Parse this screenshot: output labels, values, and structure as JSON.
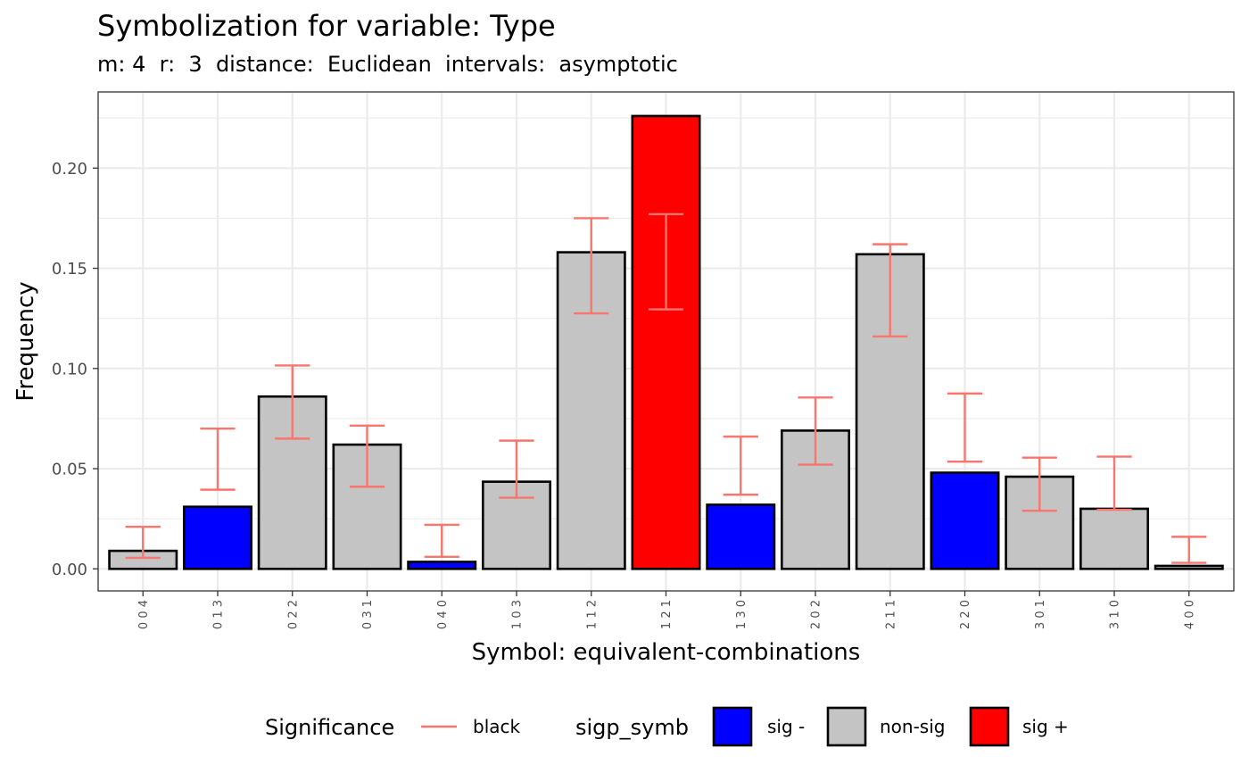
{
  "title": "Symbolization for variable: Type",
  "subtitle": "m: 4  r:  3  distance:  Euclidean  intervals:  asymptotic",
  "chart_data": {
    "type": "bar",
    "xlabel": "Symbol: equivalent-combinations",
    "ylabel": "Frequency",
    "ylim": [
      -0.011,
      0.238
    ],
    "yticks": [
      0.0,
      0.05,
      0.1,
      0.15,
      0.2
    ],
    "ytick_labels": [
      "0.00",
      "0.05",
      "0.10",
      "0.15",
      "0.20"
    ],
    "grid": true,
    "legend_position": "bottom",
    "categories": [
      "0 0 4",
      "0 1 3",
      "0 2 2",
      "0 3 1",
      "0 4 0",
      "1 0 3",
      "1 1 2",
      "1 2 1",
      "1 3 0",
      "2 0 2",
      "2 1 1",
      "2 2 0",
      "3 0 1",
      "3 1 0",
      "4 0 0"
    ],
    "values": [
      0.009,
      0.031,
      0.086,
      0.062,
      0.0035,
      0.0435,
      0.158,
      0.226,
      0.032,
      0.069,
      0.157,
      0.048,
      0.046,
      0.03,
      0.0015
    ],
    "significance": [
      "non-sig",
      "sig -",
      "non-sig",
      "non-sig",
      "sig -",
      "non-sig",
      "non-sig",
      "sig +",
      "sig -",
      "non-sig",
      "non-sig",
      "sig -",
      "non-sig",
      "non-sig",
      "non-sig"
    ],
    "error_low": [
      0.0055,
      0.0395,
      0.065,
      0.041,
      0.006,
      0.0355,
      0.1275,
      0.1295,
      0.037,
      0.052,
      0.116,
      0.0535,
      0.029,
      0.0295,
      0.003
    ],
    "error_high": [
      0.021,
      0.07,
      0.1015,
      0.0715,
      0.022,
      0.064,
      0.175,
      0.177,
      0.066,
      0.0855,
      0.162,
      0.0875,
      0.0555,
      0.056,
      0.016
    ],
    "errorbar_color": "#f8766d",
    "colors": {
      "sig -": "#0000ff",
      "non-sig": "#c4c4c4",
      "sig +": "#ff0000"
    },
    "legend": {
      "significance_title": "Significance",
      "significance_items": [
        "black"
      ],
      "fill_title": "sigp_symb",
      "fill_items": [
        "sig -",
        "non-sig",
        "sig +"
      ]
    }
  }
}
